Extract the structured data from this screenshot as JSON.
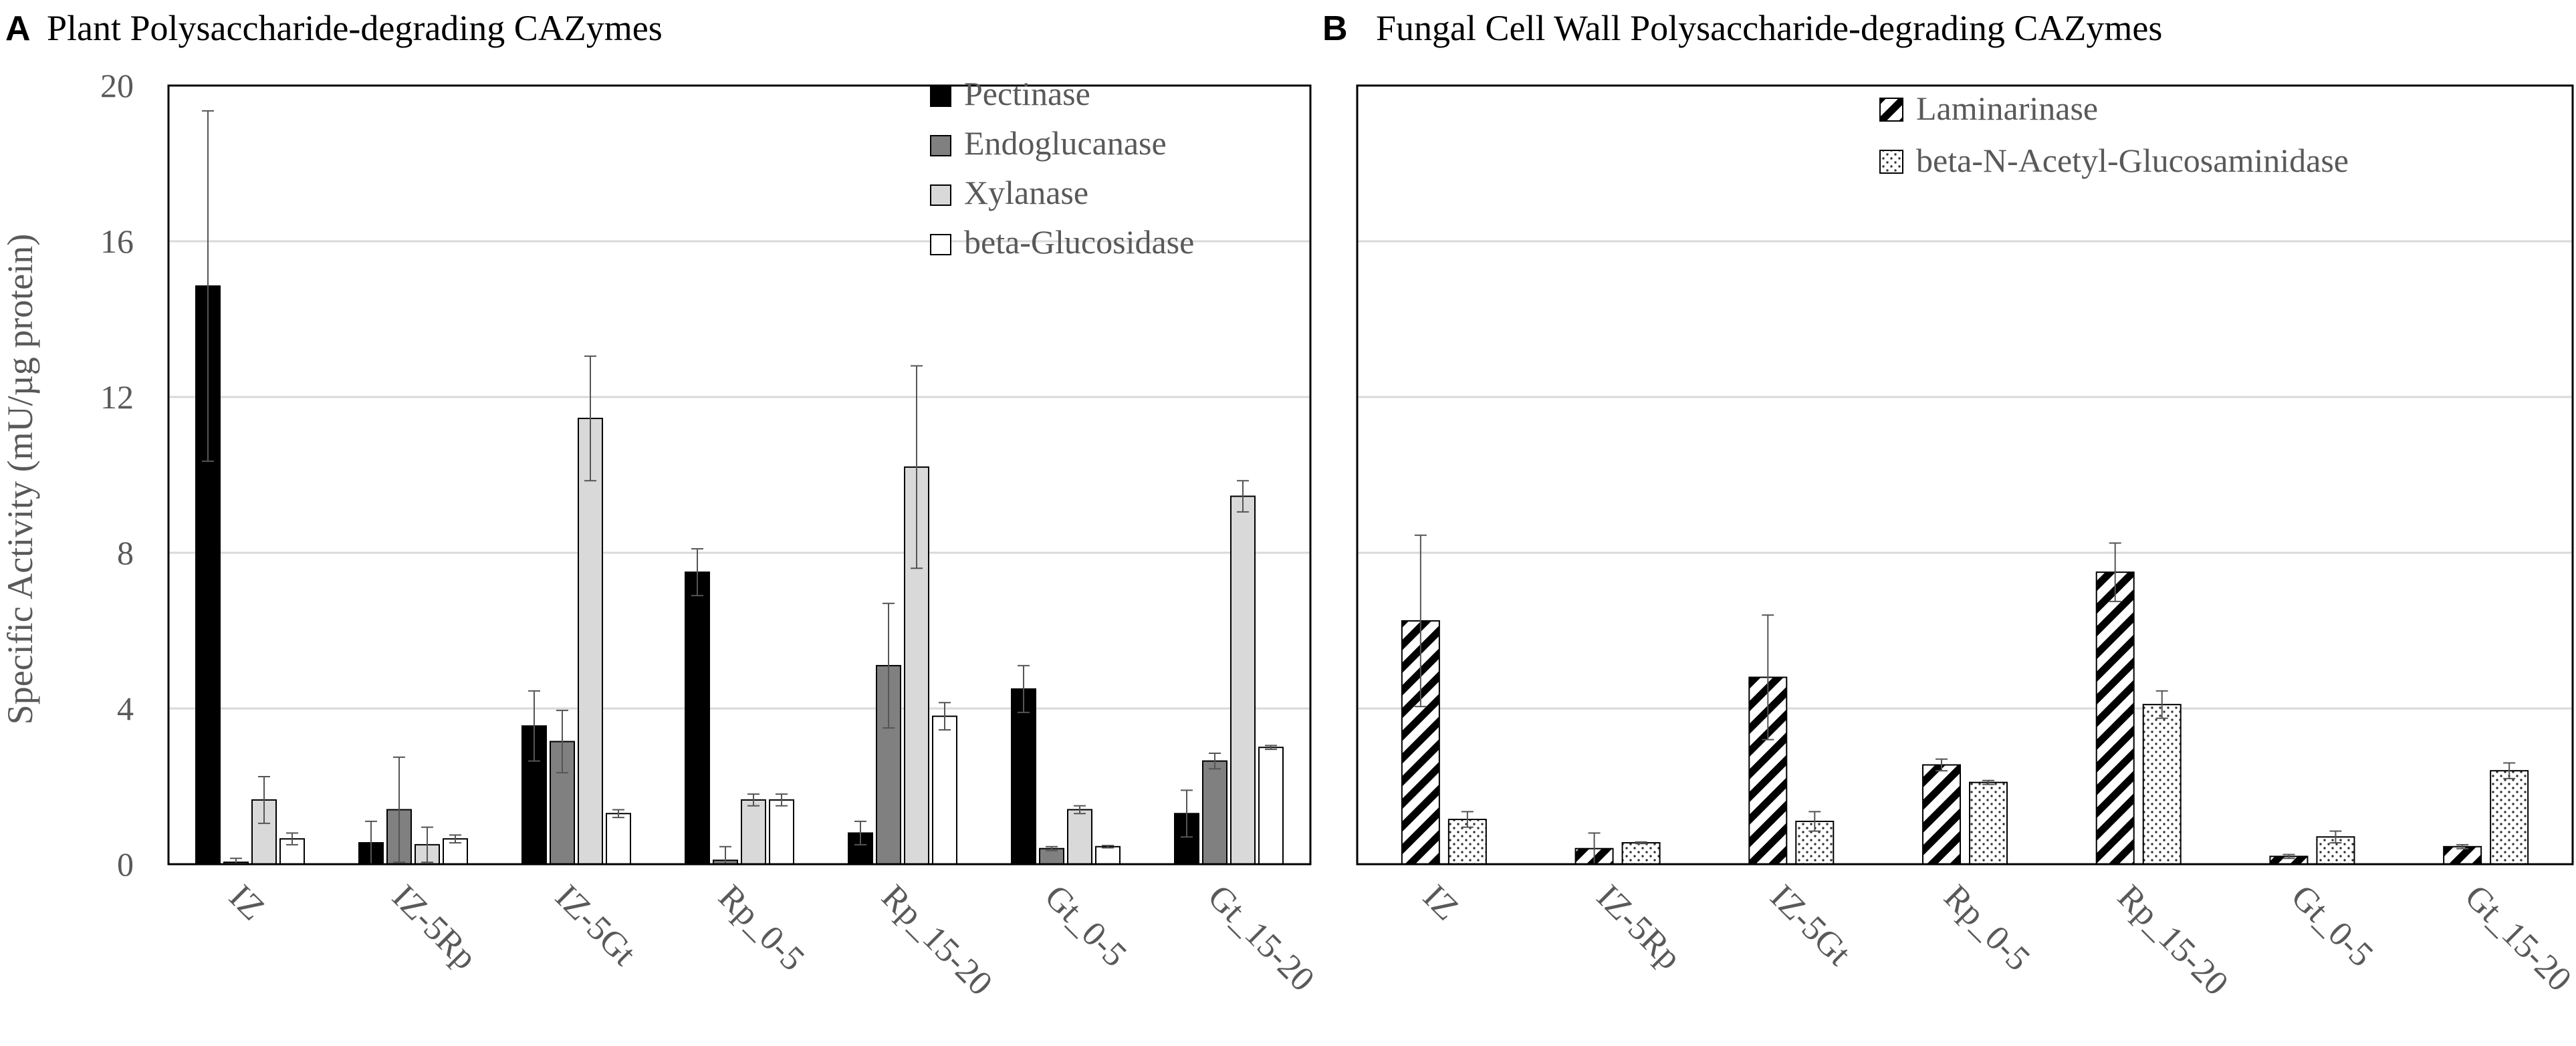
{
  "figure": {
    "ylabel": "Specific Activity (mU/µg protein)"
  },
  "chart_data": [
    {
      "type": "bar",
      "panel": "A",
      "title": "Plant Polysaccharide-degrading CAZymes",
      "categories": [
        "IZ",
        "IZ-5Rp",
        "IZ-5Gt",
        "Rp_0-5",
        "Rp_15-20",
        "Gt_0-5",
        "Gt_15-20"
      ],
      "ylabel": "Specific Activity (mU/µg protein)",
      "ylim": [
        0,
        20
      ],
      "yticks": [
        0,
        4,
        8,
        12,
        16,
        20
      ],
      "grid": true,
      "legend": "top-right",
      "series": [
        {
          "name": "Pectinase",
          "pattern": "solid-black",
          "values": [
            14.85,
            0.55,
            3.55,
            7.5,
            0.8,
            4.5,
            1.3
          ],
          "errors": [
            4.5,
            0.55,
            0.9,
            0.6,
            0.3,
            0.6,
            0.6
          ]
        },
        {
          "name": "Endoglucanase",
          "pattern": "solid-dark-gray",
          "values": [
            0.05,
            1.4,
            3.15,
            0.1,
            5.1,
            0.4,
            2.65
          ],
          "errors": [
            0.1,
            1.35,
            0.8,
            0.35,
            1.6,
            0.05,
            0.2
          ]
        },
        {
          "name": "Xylanase",
          "pattern": "solid-light-gray",
          "values": [
            1.65,
            0.5,
            11.45,
            1.65,
            10.2,
            1.4,
            9.45
          ],
          "errors": [
            0.6,
            0.45,
            1.6,
            0.15,
            2.6,
            0.1,
            0.4
          ]
        },
        {
          "name": "beta-Glucosidase",
          "pattern": "white",
          "values": [
            0.65,
            0.65,
            1.3,
            1.65,
            3.8,
            0.45,
            3.0
          ],
          "errors": [
            0.15,
            0.1,
            0.1,
            0.15,
            0.35,
            0.03,
            0.05
          ]
        }
      ]
    },
    {
      "type": "bar",
      "panel": "B",
      "title": "Fungal Cell Wall Polysaccharide-degrading CAZymes",
      "categories": [
        "IZ",
        "IZ-5Rp",
        "IZ-5Gt",
        "Rp_0-5",
        "Rp_15-20",
        "Gt_0-5",
        "Gt_15-20"
      ],
      "ylim": [
        0,
        20
      ],
      "yticks": [
        0,
        4,
        8,
        12,
        16,
        20
      ],
      "grid": true,
      "legend": "top-right",
      "series": [
        {
          "name": "Laminarinase",
          "pattern": "diagonal-hatch",
          "values": [
            6.25,
            0.4,
            4.8,
            2.55,
            7.5,
            0.2,
            0.45
          ],
          "errors": [
            2.2,
            0.4,
            1.6,
            0.15,
            0.75,
            0.05,
            0.05
          ]
        },
        {
          "name": "beta-N-Acetyl-Glucosaminidase",
          "pattern": "dotted",
          "values": [
            1.15,
            0.55,
            1.1,
            2.1,
            4.1,
            0.7,
            2.4
          ],
          "errors": [
            0.2,
            0.02,
            0.25,
            0.05,
            0.35,
            0.15,
            0.2
          ]
        }
      ]
    }
  ]
}
